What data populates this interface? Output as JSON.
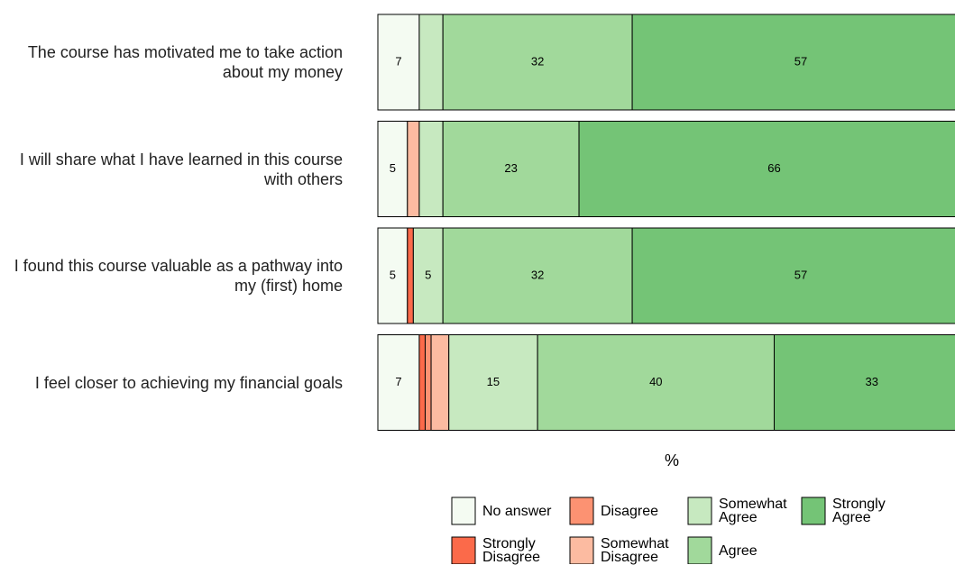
{
  "chart_data": {
    "type": "stacked_barh",
    "categories": [
      "The course has motivated me to take action about my money",
      "I will share what I have learned in this course with others",
      "I found this course valuable as a pathway into my (first) home",
      "I feel closer to achieving my financial goals"
    ],
    "xlabel": "%",
    "xlim": [
      0,
      100
    ],
    "series": [
      {
        "name": "No answer",
        "color": "#f4fbf2",
        "values": [
          7,
          5,
          5,
          7
        ],
        "value_labels": [
          "7",
          "5",
          "5",
          "7"
        ]
      },
      {
        "name": "Strongly Disagree",
        "color": "#fb6a4a",
        "values": [
          0,
          0,
          1,
          1
        ],
        "value_labels": [
          null,
          null,
          null,
          null
        ]
      },
      {
        "name": "Disagree",
        "color": "#fc9272",
        "values": [
          0,
          0,
          0,
          1
        ],
        "value_labels": [
          null,
          null,
          null,
          null
        ]
      },
      {
        "name": "Somewhat Disagree",
        "color": "#fcbba1",
        "values": [
          0,
          2,
          0,
          3
        ],
        "value_labels": [
          null,
          null,
          null,
          null
        ]
      },
      {
        "name": "Somewhat Agree",
        "color": "#c7e9c0",
        "values": [
          4,
          4,
          5,
          15
        ],
        "value_labels": [
          null,
          null,
          "5",
          "15"
        ]
      },
      {
        "name": "Agree",
        "color": "#a1d99b",
        "values": [
          32,
          23,
          32,
          40
        ],
        "value_labels": [
          "32",
          "23",
          "32",
          "40"
        ]
      },
      {
        "name": "Strongly Agree",
        "color": "#74c476",
        "values": [
          57,
          66,
          57,
          33
        ],
        "value_labels": [
          "57",
          "66",
          "57",
          "33"
        ]
      }
    ]
  }
}
